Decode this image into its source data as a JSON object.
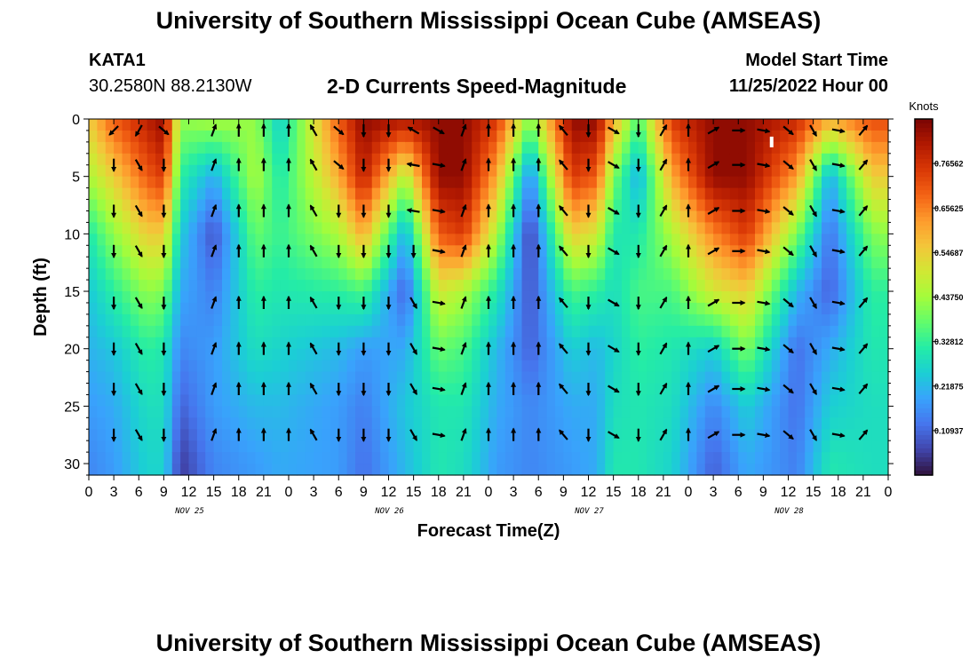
{
  "header": {
    "title": "University of Southern Mississippi Ocean Cube (AMSEAS)",
    "station": "KATA1",
    "coords": "30.2580N  88.2130W",
    "subtitle": "2-D Currents Speed-Magnitude",
    "model_start_label": "Model Start Time",
    "model_start_value": "11/25/2022 Hour 00"
  },
  "footer": {
    "title": "University of Southern Mississippi Ocean Cube (AMSEAS)"
  },
  "colors": {
    "scale": [
      "#30123b",
      "#4145ab",
      "#4675ed",
      "#39a2fc",
      "#1bcfd4",
      "#24eca6",
      "#61fc6c",
      "#a4fc3b",
      "#d1e834",
      "#f3c63a",
      "#fe9b2d",
      "#f36315",
      "#d93806",
      "#b11901",
      "#7a0403"
    ]
  },
  "chart_data": {
    "type": "heatmap",
    "title": "2-D Currents Speed-Magnitude",
    "xlabel": "Forecast Time(Z)",
    "ylabel": "Depth (ft)",
    "xlim": [
      0,
      96
    ],
    "ylim": [
      31,
      0
    ],
    "x_tick_labels": [
      "0",
      "3",
      "6",
      "9",
      "12",
      "15",
      "18",
      "21",
      "0",
      "3",
      "6",
      "9",
      "12",
      "15",
      "18",
      "21",
      "0",
      "3",
      "6",
      "9",
      "12",
      "15",
      "18",
      "21",
      "0",
      "3",
      "6",
      "9",
      "12",
      "15",
      "18",
      "21",
      "0"
    ],
    "date_labels": [
      "NOV 25",
      "NOV 26",
      "NOV 27",
      "NOV 28"
    ],
    "y_ticks": [
      0,
      5,
      10,
      15,
      20,
      25,
      30
    ],
    "colorbar": {
      "label": "Knots",
      "min": 0.0,
      "max": 0.875,
      "ticks": [
        "0.76562",
        "0.65625",
        "0.54687",
        "0.43750",
        "0.32812",
        "0.21875",
        "0.10937"
      ]
    },
    "speed_profiles": [
      {
        "hour": 0,
        "values": [
          0.55,
          0.45,
          0.3,
          0.24,
          0.21,
          0.18,
          0.15
        ]
      },
      {
        "hour": 3,
        "values": [
          0.7,
          0.55,
          0.42,
          0.32,
          0.24,
          0.2,
          0.18
        ]
      },
      {
        "hour": 7,
        "values": [
          0.8,
          0.7,
          0.55,
          0.42,
          0.32,
          0.28,
          0.26
        ]
      },
      {
        "hour": 9,
        "values": [
          0.85,
          0.75,
          0.55,
          0.4,
          0.3,
          0.28,
          0.26
        ]
      },
      {
        "hour": 11,
        "values": [
          0.42,
          0.32,
          0.25,
          0.2,
          0.15,
          0.1,
          0.05
        ]
      },
      {
        "hour": 15,
        "values": [
          0.45,
          0.2,
          0.08,
          0.14,
          0.18,
          0.18,
          0.15
        ]
      },
      {
        "hour": 20,
        "values": [
          0.42,
          0.45,
          0.38,
          0.32,
          0.28,
          0.22,
          0.18
        ]
      },
      {
        "hour": 23,
        "values": [
          0.25,
          0.3,
          0.33,
          0.3,
          0.26,
          0.22,
          0.2
        ]
      },
      {
        "hour": 30,
        "values": [
          0.7,
          0.6,
          0.45,
          0.32,
          0.22,
          0.18,
          0.18
        ]
      },
      {
        "hour": 33,
        "values": [
          0.85,
          0.8,
          0.6,
          0.35,
          0.18,
          0.14,
          0.12
        ]
      },
      {
        "hour": 38,
        "values": [
          0.82,
          0.45,
          0.2,
          0.1,
          0.2,
          0.24,
          0.22
        ]
      },
      {
        "hour": 42,
        "values": [
          0.85,
          0.85,
          0.7,
          0.5,
          0.38,
          0.3,
          0.3
        ]
      },
      {
        "hour": 45,
        "values": [
          0.85,
          0.85,
          0.75,
          0.45,
          0.35,
          0.3,
          0.28
        ]
      },
      {
        "hour": 49,
        "values": [
          0.75,
          0.6,
          0.45,
          0.3,
          0.22,
          0.2,
          0.18
        ]
      },
      {
        "hour": 53,
        "values": [
          0.4,
          0.15,
          0.05,
          0.08,
          0.1,
          0.15,
          0.15
        ]
      },
      {
        "hour": 58,
        "values": [
          0.85,
          0.75,
          0.55,
          0.35,
          0.25,
          0.2,
          0.18
        ]
      },
      {
        "hour": 61,
        "values": [
          0.85,
          0.7,
          0.5,
          0.32,
          0.22,
          0.2,
          0.2
        ]
      },
      {
        "hour": 63,
        "values": [
          0.6,
          0.4,
          0.3,
          0.28,
          0.26,
          0.28,
          0.3
        ]
      },
      {
        "hour": 66,
        "values": [
          0.35,
          0.2,
          0.3,
          0.35,
          0.32,
          0.3,
          0.3
        ]
      },
      {
        "hour": 70,
        "values": [
          0.75,
          0.6,
          0.45,
          0.35,
          0.3,
          0.28,
          0.26
        ]
      },
      {
        "hour": 75,
        "values": [
          0.85,
          0.85,
          0.65,
          0.5,
          0.25,
          0.15,
          0.1
        ]
      },
      {
        "hour": 79,
        "values": [
          0.85,
          0.85,
          0.75,
          0.55,
          0.4,
          0.25,
          0.2
        ]
      },
      {
        "hour": 85,
        "values": [
          0.78,
          0.62,
          0.4,
          0.22,
          0.12,
          0.12,
          0.14
        ]
      },
      {
        "hour": 89,
        "values": [
          0.6,
          0.2,
          0.12,
          0.1,
          0.2,
          0.25,
          0.3
        ]
      },
      {
        "hour": 94,
        "values": [
          0.72,
          0.55,
          0.4,
          0.32,
          0.3,
          0.28,
          0.28
        ]
      },
      {
        "hour": 96,
        "values": [
          0.72,
          0.55,
          0.42,
          0.32,
          0.3,
          0.28,
          0.28
        ]
      }
    ],
    "profile_depths": [
      0,
      5,
      10,
      15,
      20,
      25,
      30
    ],
    "vector_depths": [
      1,
      4,
      8,
      11.5,
      16,
      20,
      23.5,
      27.5
    ],
    "vector_hours": [
      3,
      6,
      9,
      15,
      18,
      21,
      24,
      27,
      30,
      33,
      36,
      39,
      42,
      45,
      48,
      51,
      54,
      57,
      60,
      63,
      66,
      69,
      72,
      75,
      78,
      81,
      84,
      87,
      90,
      93
    ],
    "vector_directions": [
      [
        -135,
        180,
        180,
        180,
        180,
        180,
        180,
        180
      ],
      [
        -150,
        150,
        150,
        150,
        150,
        150,
        150,
        150
      ],
      [
        130,
        180,
        180,
        180,
        180,
        180,
        180,
        180
      ],
      [
        20,
        20,
        20,
        20,
        20,
        20,
        20,
        20
      ],
      [
        0,
        0,
        0,
        0,
        0,
        0,
        0,
        0
      ],
      [
        0,
        0,
        0,
        0,
        0,
        0,
        0,
        0
      ],
      [
        0,
        0,
        0,
        0,
        0,
        0,
        0,
        0
      ],
      [
        -30,
        -30,
        -30,
        -30,
        -30,
        -30,
        -30,
        -30
      ],
      [
        130,
        130,
        180,
        180,
        180,
        180,
        180,
        180
      ],
      [
        180,
        180,
        180,
        180,
        180,
        180,
        180,
        180
      ],
      [
        180,
        180,
        180,
        180,
        180,
        180,
        180,
        180
      ],
      [
        -60,
        -80,
        -80,
        180,
        150,
        150,
        150,
        150
      ],
      [
        120,
        100,
        100,
        100,
        100,
        100,
        100,
        100
      ],
      [
        20,
        20,
        20,
        20,
        20,
        20,
        20,
        20
      ],
      [
        0,
        0,
        0,
        0,
        0,
        0,
        0,
        0
      ],
      [
        0,
        0,
        0,
        0,
        0,
        0,
        0,
        0
      ],
      [
        0,
        0,
        0,
        0,
        0,
        0,
        0,
        0
      ],
      [
        -40,
        -40,
        -40,
        -40,
        -40,
        -40,
        -40,
        -40
      ],
      [
        180,
        180,
        180,
        180,
        180,
        180,
        180,
        180
      ],
      [
        120,
        120,
        120,
        120,
        120,
        120,
        120,
        120
      ],
      [
        180,
        180,
        180,
        180,
        180,
        180,
        180,
        180
      ],
      [
        30,
        30,
        30,
        30,
        30,
        30,
        30,
        30
      ],
      [
        0,
        0,
        0,
        0,
        0,
        0,
        0,
        0
      ],
      [
        60,
        60,
        60,
        60,
        60,
        60,
        60,
        60
      ],
      [
        90,
        90,
        90,
        90,
        90,
        90,
        90,
        90
      ],
      [
        100,
        100,
        100,
        100,
        100,
        100,
        100,
        100
      ],
      [
        130,
        130,
        130,
        130,
        130,
        130,
        130,
        130
      ],
      [
        150,
        150,
        150,
        150,
        150,
        150,
        150,
        150
      ],
      [
        100,
        100,
        100,
        100,
        100,
        100,
        100,
        100
      ],
      [
        40,
        40,
        40,
        40,
        40,
        40,
        40,
        40
      ]
    ],
    "marker": {
      "hour": 82,
      "depth": 2
    }
  }
}
